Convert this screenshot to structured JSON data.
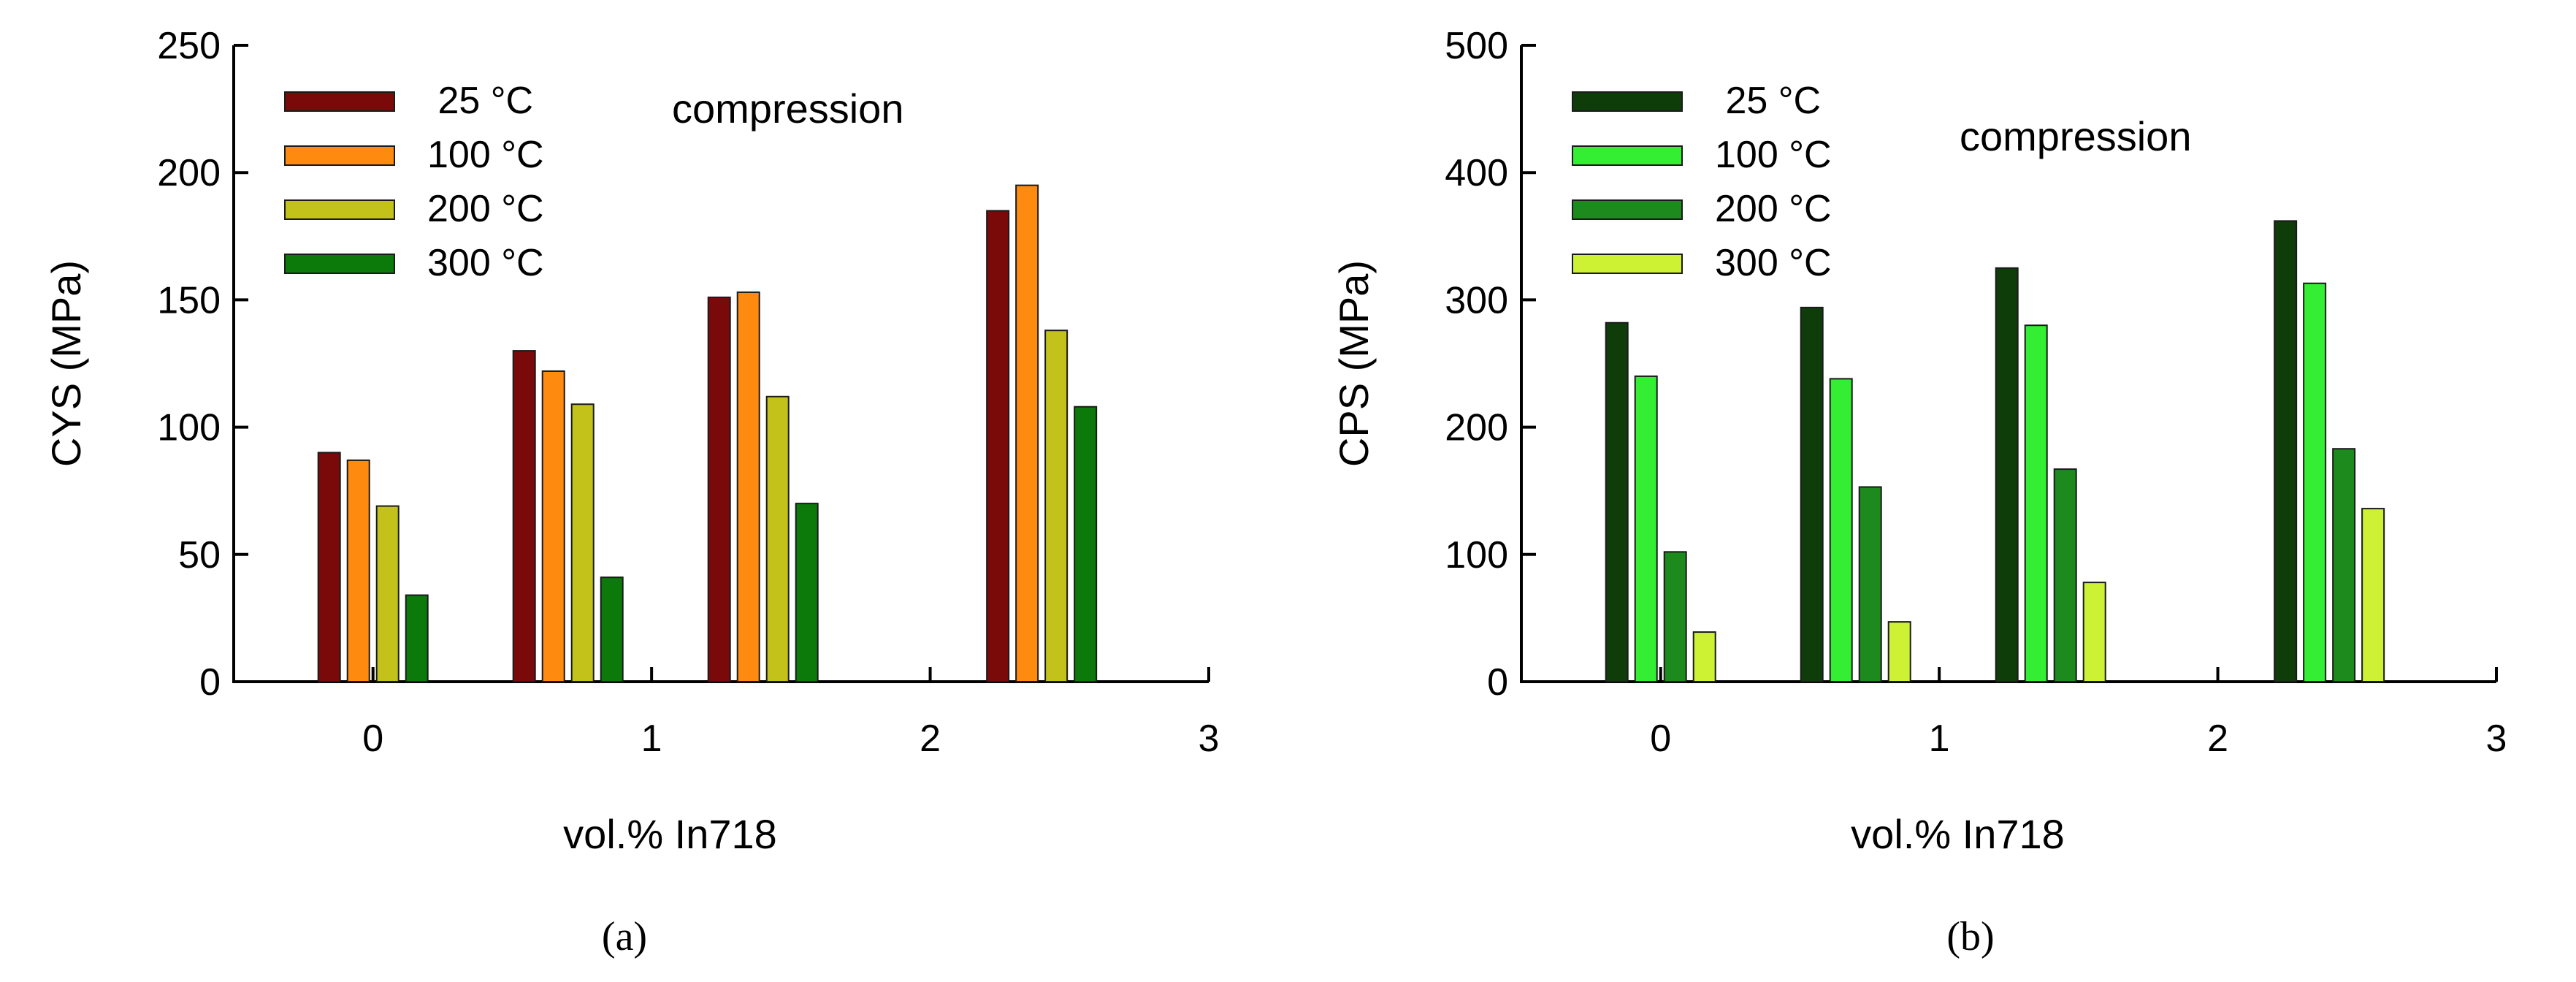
{
  "chart_data": [
    {
      "type": "bar",
      "panel_label": "(a)",
      "title": "",
      "annotation": "compression",
      "xlabel": "vol.% In718",
      "ylabel": "CYS (MPa)",
      "xlim": [
        -0.5,
        3
      ],
      "ylim": [
        0,
        250
      ],
      "xticks": [
        "0",
        "1",
        "2",
        "3"
      ],
      "yticks": [
        "0",
        "50",
        "100",
        "150",
        "200",
        "250"
      ],
      "legend_position": "top-left",
      "categories": [
        0,
        0.7,
        1.4,
        2.4
      ],
      "series": [
        {
          "name": " 25 °C",
          "color": "#7a0a0a",
          "values": [
            90,
            130,
            151,
            185
          ]
        },
        {
          "name": "100 °C",
          "color": "#ff8a10",
          "values": [
            87,
            122,
            153,
            195
          ]
        },
        {
          "name": "200 °C",
          "color": "#c2c21a",
          "values": [
            69,
            109,
            112,
            138
          ]
        },
        {
          "name": "300 °C",
          "color": "#0b7a0b",
          "values": [
            34,
            41,
            70,
            108
          ]
        }
      ]
    },
    {
      "type": "bar",
      "panel_label": "(b)",
      "title": "",
      "annotation": "compression",
      "xlabel": "vol.% In718",
      "ylabel": "CPS (MPa)",
      "xlim": [
        -0.5,
        3
      ],
      "ylim": [
        0,
        500
      ],
      "xticks": [
        "0",
        "1",
        "2",
        "3"
      ],
      "yticks": [
        "0",
        "100",
        "200",
        "300",
        "400",
        "500"
      ],
      "legend_position": "top-left",
      "categories": [
        0,
        0.7,
        1.4,
        2.4
      ],
      "series": [
        {
          "name": " 25 °C",
          "color": "#0f3d0a",
          "values": [
            282,
            294,
            325,
            362
          ]
        },
        {
          "name": "100 °C",
          "color": "#33ee33",
          "values": [
            240,
            238,
            280,
            313
          ]
        },
        {
          "name": "200 °C",
          "color": "#1c8a1c",
          "values": [
            102,
            153,
            167,
            183
          ]
        },
        {
          "name": "300 °C",
          "color": "#ccf233",
          "values": [
            39,
            47,
            78,
            136
          ]
        }
      ]
    }
  ]
}
